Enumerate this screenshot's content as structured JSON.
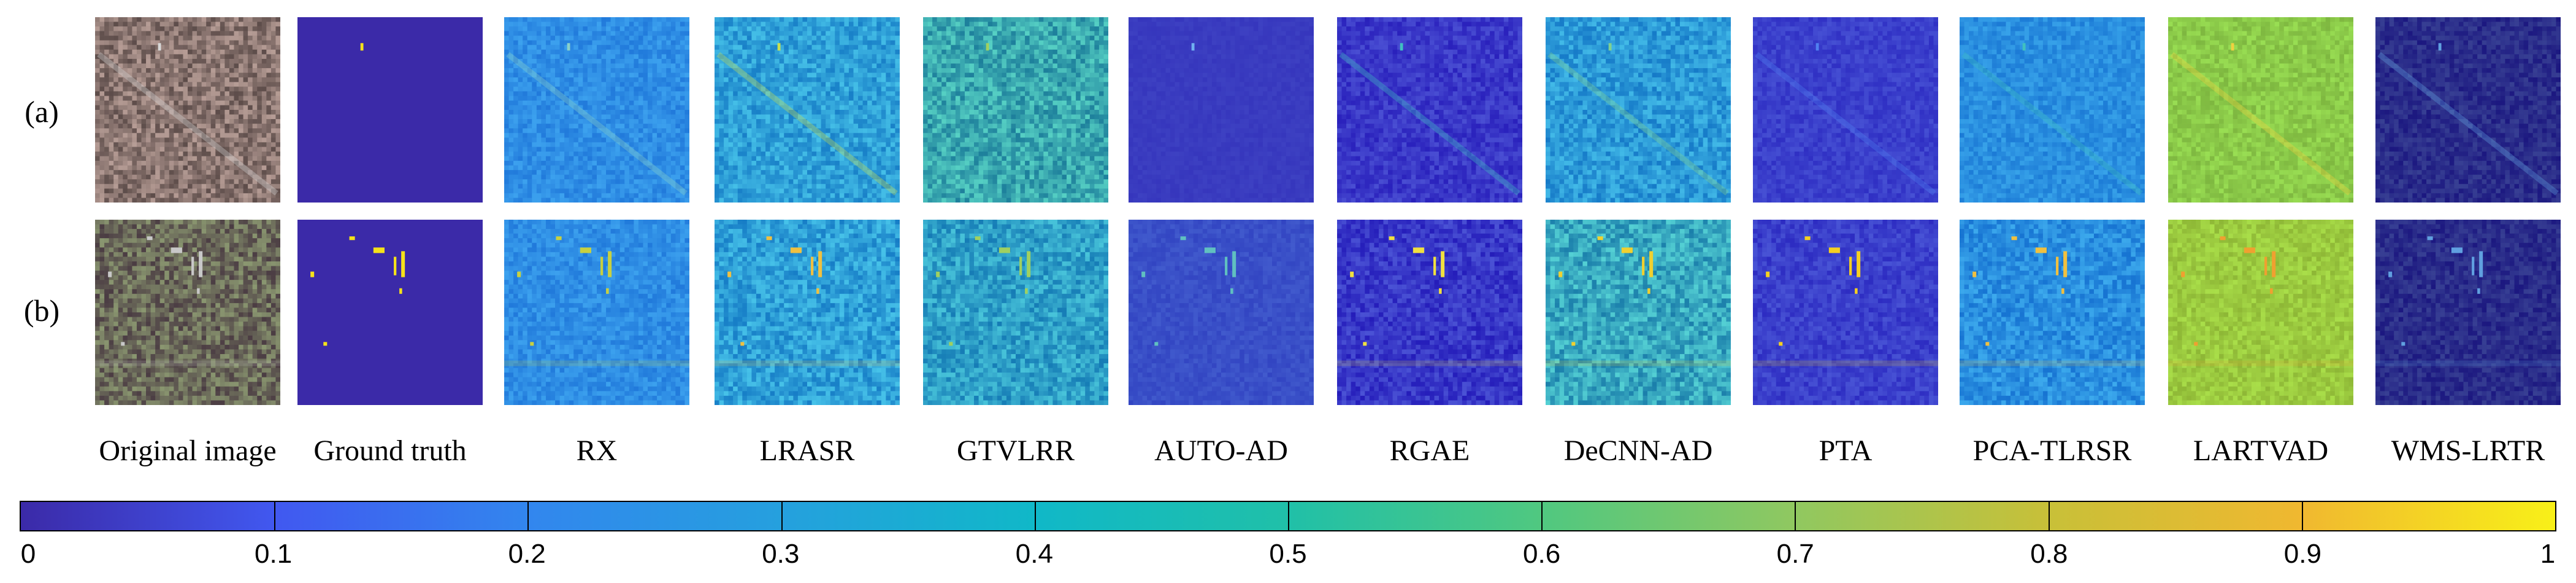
{
  "row_labels": [
    "(a)",
    "(b)"
  ],
  "method_labels": [
    "Original image",
    "Ground truth",
    "RX",
    "LRASR",
    "GTVLRR",
    "AUTO-AD",
    "RGAE",
    "DeCNN-AD",
    "PTA",
    "PCA-TLRSR",
    "LARTVAD",
    "WMS-LRTR"
  ],
  "panel_styles": {
    "a": [
      {
        "base": "#8a7570",
        "spread": 0.5,
        "grain": "natural",
        "diagonal": true,
        "target": "#d8d8d8"
      },
      {
        "base": "#3b2aa8",
        "spread": 0,
        "grain": "flat",
        "target": "#f5e21a"
      },
      {
        "base": "#2f8ee5",
        "spread": 0.22,
        "grain": "noise",
        "diagonal": true,
        "target": "#8ad0c8"
      },
      {
        "base": "#2fa0d8",
        "spread": 0.35,
        "grain": "noise",
        "diagonal": true,
        "target": "#c8e050"
      },
      {
        "base": "#3aa8b0",
        "spread": 0.45,
        "grain": "noise",
        "diagonal": false,
        "target": "#a0d060"
      },
      {
        "base": "#3a3cc0",
        "spread": 0.06,
        "grain": "noise",
        "diagonal": false,
        "target": "#70b0f0"
      },
      {
        "base": "#3a38c8",
        "spread": 0.25,
        "grain": "noise",
        "diagonal": true,
        "target": "#40c0c0"
      },
      {
        "base": "#2c9ad8",
        "spread": 0.35,
        "grain": "noise",
        "diagonal": true,
        "target": "#80d090"
      },
      {
        "base": "#3b40cc",
        "spread": 0.18,
        "grain": "noise",
        "diagonal": true,
        "target": "#5080f0"
      },
      {
        "base": "#2a8fe0",
        "spread": 0.22,
        "grain": "noise",
        "diagonal": true,
        "target": "#40c0c0"
      },
      {
        "base": "#8ccb4a",
        "spread": 0.22,
        "grain": "noise",
        "diagonal": true,
        "target": "#f0d040"
      },
      {
        "base": "#2a2c8a",
        "spread": 0.22,
        "grain": "noise",
        "diagonal": true,
        "target": "#60a0e0"
      }
    ],
    "b": [
      {
        "base": "#6b6a5a",
        "spread": 0.5,
        "grain": "urban",
        "target": "#c8c8c8"
      },
      {
        "base": "#3b2aa8",
        "spread": 0,
        "grain": "flat",
        "target": "#f5e21a"
      },
      {
        "base": "#2f8ee5",
        "spread": 0.22,
        "grain": "urban",
        "target": "#c8d040"
      },
      {
        "base": "#2fa0d8",
        "spread": 0.38,
        "grain": "urban",
        "target": "#f0c040"
      },
      {
        "base": "#2fa0c8",
        "spread": 0.4,
        "grain": "noise",
        "target": "#a0d060"
      },
      {
        "base": "#3a50c8",
        "spread": 0.12,
        "grain": "noise",
        "target": "#60c0c0"
      },
      {
        "base": "#3838c8",
        "spread": 0.3,
        "grain": "urban",
        "target": "#f0e040"
      },
      {
        "base": "#38a8c0",
        "spread": 0.45,
        "grain": "urban",
        "target": "#f0d030"
      },
      {
        "base": "#3b40cc",
        "spread": 0.22,
        "grain": "urban",
        "target": "#f5d020"
      },
      {
        "base": "#2a8fe0",
        "spread": 0.3,
        "grain": "urban",
        "target": "#f0c040"
      },
      {
        "base": "#9ccb40",
        "spread": 0.22,
        "grain": "urban",
        "target": "#f0a030"
      },
      {
        "base": "#2a2c8a",
        "spread": 0.22,
        "grain": "urban",
        "target": "#60a0e0"
      }
    ]
  },
  "colorbar": {
    "colors": [
      "#3b2aa8",
      "#4158f0",
      "#3286ee",
      "#25a0de",
      "#10b8c8",
      "#20c0a8",
      "#50c880",
      "#90c860",
      "#c8c038",
      "#f0b830",
      "#f8f018"
    ],
    "ticks": [
      "0",
      "0.1",
      "0.2",
      "0.3",
      "0.4",
      "0.5",
      "0.6",
      "0.7",
      "0.8",
      "0.9",
      "1"
    ]
  }
}
